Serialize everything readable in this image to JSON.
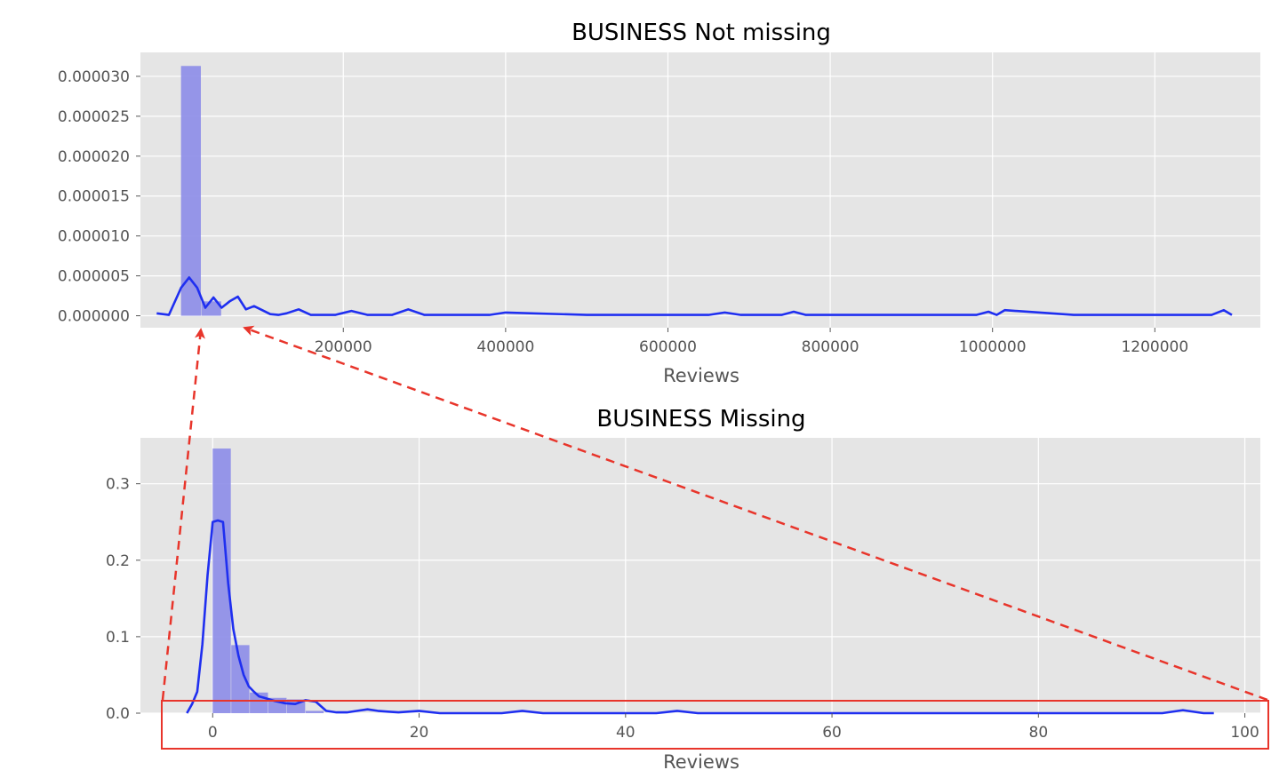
{
  "chart_data": [
    {
      "type": "histogram",
      "title": "BUSINESS Not missing",
      "xlabel": "Reviews",
      "ylabel": "",
      "xlim": [
        -50000,
        1330000
      ],
      "ylim": [
        -1.5e-06,
        3.3e-05
      ],
      "xticks": [
        200000,
        400000,
        600000,
        800000,
        1000000,
        1200000
      ],
      "xtick_labels": [
        "200000",
        "400000",
        "600000",
        "800000",
        "1000000",
        "1200000"
      ],
      "yticks": [
        0,
        5e-06,
        1e-05,
        1.5e-05,
        2e-05,
        2.5e-05,
        3e-05
      ],
      "ytick_labels": [
        "0.000000",
        "0.000005",
        "0.000010",
        "0.000015",
        "0.000020",
        "0.000025",
        "0.000030"
      ],
      "grid": true,
      "histogram": {
        "bin_edges": [
          0,
          25000,
          50000
        ],
        "density": [
          3.13e-05,
          1.8e-06
        ]
      },
      "kde": {
        "x": [
          -30000,
          -15000,
          0,
          10000,
          20000,
          30000,
          40000,
          50000,
          60000,
          70000,
          80000,
          90000,
          100000,
          110000,
          120000,
          130000,
          145000,
          160000,
          175000,
          190000,
          210000,
          230000,
          260000,
          280000,
          300000,
          340000,
          380000,
          400000,
          500000,
          600000,
          650000,
          670000,
          690000,
          740000,
          755000,
          770000,
          900000,
          980000,
          995000,
          1005000,
          1015000,
          1100000,
          1200000,
          1270000,
          1285000,
          1295000
        ],
        "y": [
          3e-07,
          1e-07,
          3.5e-06,
          4.8e-06,
          3.5e-06,
          1e-06,
          2.3e-06,
          1e-06,
          1.8e-06,
          2.4e-06,
          8e-07,
          1.2e-06,
          7e-07,
          2e-07,
          1e-07,
          3e-07,
          8e-07,
          1e-07,
          1e-07,
          1e-07,
          6e-07,
          1e-07,
          1e-07,
          8e-07,
          1e-07,
          1e-07,
          1e-07,
          4e-07,
          1e-07,
          1e-07,
          1e-07,
          4e-07,
          1e-07,
          1e-07,
          5e-07,
          1e-07,
          1e-07,
          1e-07,
          5e-07,
          1e-07,
          7e-07,
          1e-07,
          1e-07,
          1e-07,
          7e-07,
          1e-07
        ]
      },
      "colors": {
        "bars": "#8c8ce8",
        "kde": "#1f2ff0",
        "background": "#e5e5e5",
        "grid": "#ffffff"
      }
    },
    {
      "type": "histogram",
      "title": "BUSINESS Missing",
      "xlabel": "Reviews",
      "ylabel": "",
      "xlim": [
        -7,
        101.5
      ],
      "ylim": [
        0,
        0.36
      ],
      "xticks": [
        0,
        20,
        40,
        60,
        80,
        100
      ],
      "xtick_labels": [
        "0",
        "20",
        "40",
        "60",
        "80",
        "100"
      ],
      "yticks": [
        0.0,
        0.1,
        0.2,
        0.3
      ],
      "ytick_labels": [
        "0.0",
        "0.1",
        "0.2",
        "0.3"
      ],
      "grid": true,
      "histogram": {
        "bin_edges": [
          0,
          1.8,
          3.6,
          5.4,
          7.2,
          9.0,
          10.8
        ],
        "density": [
          0.346,
          0.089,
          0.027,
          0.02,
          0.018,
          0.003
        ]
      },
      "kde": {
        "x": [
          -2.5,
          -2,
          -1.5,
          -1,
          -0.5,
          0,
          0.5,
          1,
          1.5,
          2,
          2.5,
          3,
          3.5,
          4,
          4.5,
          5,
          5.5,
          6,
          7,
          8,
          9,
          10,
          11,
          12,
          13,
          14,
          15,
          16,
          17,
          18,
          20,
          22,
          28,
          30,
          32,
          43,
          45,
          47,
          92,
          94,
          96,
          97
        ],
        "y": [
          0.0,
          0.012,
          0.028,
          0.09,
          0.18,
          0.25,
          0.252,
          0.25,
          0.17,
          0.11,
          0.075,
          0.05,
          0.035,
          0.028,
          0.022,
          0.02,
          0.018,
          0.016,
          0.013,
          0.012,
          0.017,
          0.015,
          0.003,
          0.001,
          0.001,
          0.003,
          0.005,
          0.003,
          0.002,
          0.001,
          0.003,
          0.0,
          0.0,
          0.003,
          0.0,
          0.0,
          0.003,
          0.0,
          0.0,
          0.004,
          0.0,
          0.0
        ]
      },
      "colors": {
        "bars": "#8c8ce8",
        "kde": "#1f2ff0",
        "background": "#e5e5e5",
        "grid": "#ffffff"
      }
    }
  ],
  "annotation_colors": {
    "zoom": "#e8352b"
  }
}
